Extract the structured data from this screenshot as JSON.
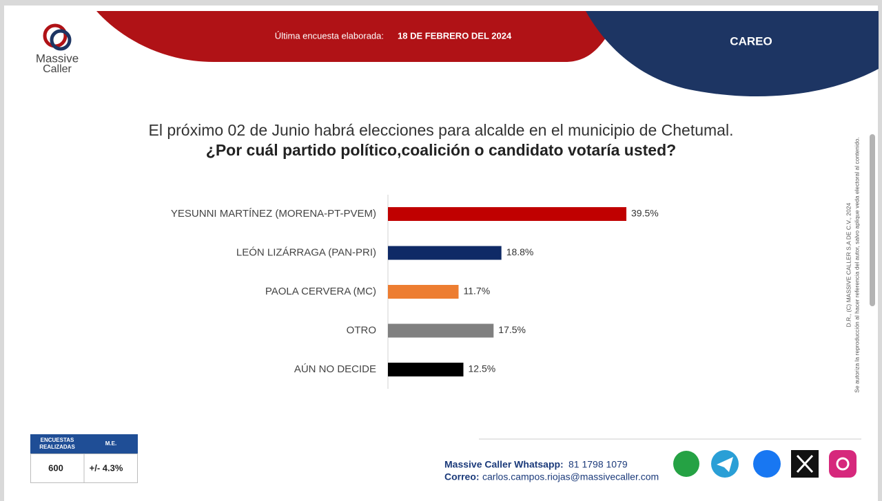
{
  "header": {
    "logo_line1": "Massive",
    "logo_line2": "Caller",
    "survey_label": "Última encuesta elaborada:",
    "survey_date": "18 DE FEBRERO DEL 2024",
    "tag": "CAREO"
  },
  "chart_data": {
    "type": "bar",
    "orientation": "horizontal",
    "title": "El próximo 02 de Junio habrá elecciones para alcalde en el municipio de  Chetumal.",
    "subtitle": "¿Por cuál partido político,coalición o candidato votaría usted?",
    "categories": [
      "YESUNNI MARTÍNEZ (MORENA-PT-PVEM)",
      "LEÓN LIZÁRRAGA (PAN-PRI)",
      "PAOLA CERVERA (MC)",
      "OTRO",
      "AÚN NO DECIDE"
    ],
    "values": [
      39.5,
      18.8,
      11.7,
      17.5,
      12.5
    ],
    "value_labels": [
      "39.5%",
      "18.8%",
      "11.7%",
      "17.5%",
      "12.5%"
    ],
    "colors": [
      "#c00000",
      "#0f2a66",
      "#ed7d31",
      "#808080",
      "#000000"
    ]
  },
  "legal": {
    "line1": "D.R., (C) MASSIVE CALLER S.A DE C.V., 2024",
    "line2": "Se autoriza la reproducción al hacer referencia del autor, salvo aplique veda electoral al contenido."
  },
  "table": {
    "headers": [
      "ENCUESTAS REALIZADAS",
      "M.E."
    ],
    "rows": [
      [
        "600",
        "+/- 4.3%"
      ]
    ]
  },
  "footer": {
    "whatsapp_label": "Massive Caller Whatsapp:",
    "whatsapp": "81 1798 1079",
    "email_label": "Correo:",
    "email": "carlos.campos.riojas@massivecaller.com"
  }
}
